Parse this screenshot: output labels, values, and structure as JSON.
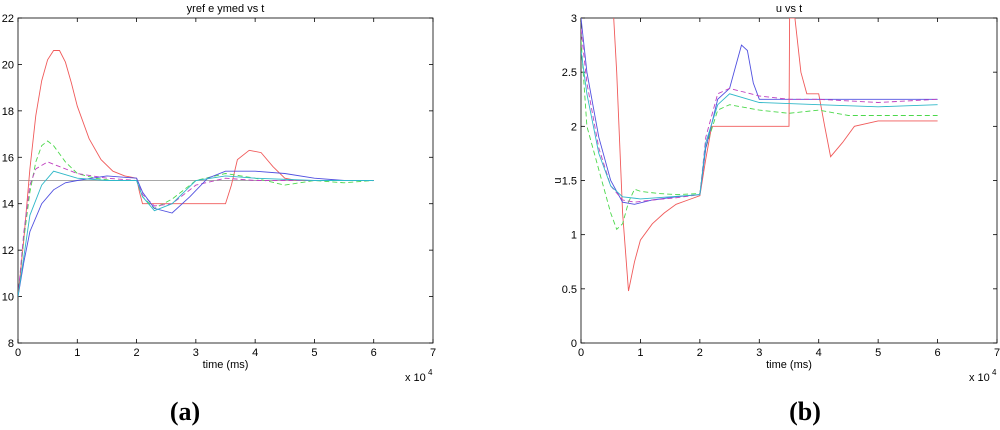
{
  "chart_data": [
    {
      "type": "line",
      "title": "yref  e ymed vs t",
      "x_label": "time (ms)",
      "x_exponent_base": "x 10",
      "x_exponent": "4",
      "caption": "(a)",
      "xlim": [
        0,
        7
      ],
      "xticks": [
        0,
        1,
        2,
        3,
        4,
        5,
        6,
        7
      ],
      "ylim": [
        8,
        22
      ],
      "yticks": [
        8,
        10,
        12,
        14,
        16,
        18,
        20,
        22
      ],
      "series": [
        {
          "color": "#a8a8a8",
          "dashed": false,
          "x": [
            0,
            6
          ],
          "values": [
            15,
            15
          ]
        },
        {
          "color": "#f05a5a",
          "dashed": false,
          "x": [
            0,
            0.1,
            0.2,
            0.3,
            0.4,
            0.5,
            0.6,
            0.7,
            0.8,
            0.9,
            1.0,
            1.2,
            1.4,
            1.6,
            1.8,
            2.0,
            2.05,
            2.1,
            2.3,
            2.6,
            3.0,
            3.5,
            3.6,
            3.7,
            3.9,
            4.1,
            4.3,
            4.5,
            4.7,
            5,
            5.5,
            6
          ],
          "values": [
            10,
            12.5,
            15.5,
            17.8,
            19.3,
            20.2,
            20.6,
            20.6,
            20.1,
            19.2,
            18.2,
            16.8,
            15.9,
            15.4,
            15.2,
            15.1,
            14.5,
            14,
            14,
            14,
            14,
            14,
            14.8,
            15.9,
            16.3,
            16.2,
            15.6,
            15.1,
            15,
            15,
            15,
            15
          ]
        },
        {
          "color": "#4cd84c",
          "dashed": true,
          "x": [
            0,
            0.1,
            0.2,
            0.3,
            0.4,
            0.5,
            0.6,
            0.8,
            1.0,
            1.3,
            1.6,
            2.0,
            2.1,
            2.3,
            2.6,
            3.0,
            3.5,
            4.0,
            4.5,
            5,
            5.5,
            6
          ],
          "values": [
            10,
            12.5,
            14.5,
            15.8,
            16.5,
            16.7,
            16.5,
            15.8,
            15.3,
            15.1,
            15,
            15,
            14.3,
            13.8,
            14.2,
            15,
            15.3,
            15.1,
            14.8,
            15,
            14.9,
            15
          ]
        },
        {
          "color": "#c040c0",
          "dashed": true,
          "x": [
            0,
            0.1,
            0.2,
            0.3,
            0.5,
            0.7,
            1.0,
            1.5,
            2.0,
            2.1,
            2.3,
            2.6,
            3.0,
            3.5,
            4,
            5,
            6
          ],
          "values": [
            10,
            12.8,
            14.8,
            15.5,
            15.8,
            15.6,
            15.3,
            15.1,
            15,
            14.4,
            13.9,
            14,
            14.8,
            15.1,
            15,
            15,
            15
          ]
        },
        {
          "color": "#5050e0",
          "dashed": false,
          "x": [
            0,
            0.1,
            0.2,
            0.4,
            0.6,
            0.8,
            1.0,
            1.5,
            2.0,
            2.1,
            2.3,
            2.6,
            2.9,
            3.2,
            3.5,
            4,
            4.5,
            5,
            5.5,
            6
          ],
          "values": [
            10,
            11.5,
            12.8,
            14,
            14.6,
            14.9,
            15,
            15.2,
            15.1,
            14.5,
            13.8,
            13.6,
            14.3,
            15.1,
            15.4,
            15.4,
            15.3,
            15.1,
            15,
            15
          ]
        },
        {
          "color": "#30b8c8",
          "dashed": false,
          "x": [
            0,
            0.2,
            0.4,
            0.6,
            1,
            1.5,
            2,
            2.1,
            2.3,
            2.6,
            3,
            3.5,
            4,
            5,
            6
          ],
          "values": [
            10,
            13.5,
            14.8,
            15.4,
            15.1,
            15,
            15,
            14.3,
            13.7,
            14,
            15,
            15.2,
            15.1,
            15,
            15
          ]
        }
      ]
    },
    {
      "type": "line",
      "title": "u vs t",
      "x_label": "time (ms)",
      "y_label": "u",
      "x_exponent_base": "x 10",
      "x_exponent": "4",
      "caption": "(b)",
      "xlim": [
        0,
        7
      ],
      "xticks": [
        0,
        1,
        2,
        3,
        4,
        5,
        6,
        7
      ],
      "ylim": [
        0,
        3
      ],
      "yticks": [
        0,
        0.5,
        1,
        1.5,
        2,
        2.5,
        3
      ],
      "series": [
        {
          "color": "#f05a5a",
          "dashed": false,
          "x": [
            0.55,
            0.6,
            0.7,
            0.8,
            0.9,
            1.0,
            1.2,
            1.4,
            1.6,
            1.8,
            2.0,
            2.1,
            2.2,
            2.5,
            3.0,
            3.5,
            3.51,
            3.6,
            3.7,
            3.8,
            4.0,
            4.1,
            4.2,
            4.4,
            4.6,
            5,
            5.5,
            6
          ],
          "values": [
            3.0,
            2.5,
            1.2,
            0.48,
            0.75,
            0.95,
            1.1,
            1.2,
            1.28,
            1.32,
            1.36,
            1.7,
            2.0,
            2.0,
            2.0,
            2.0,
            3.0,
            3.0,
            2.5,
            2.3,
            2.3,
            2.0,
            1.72,
            1.85,
            2.0,
            2.05,
            2.05,
            2.05
          ]
        },
        {
          "color": "#4cd84c",
          "dashed": true,
          "x": [
            0,
            0.1,
            0.3,
            0.5,
            0.6,
            0.7,
            0.8,
            0.9,
            1.0,
            1.3,
            1.6,
            2.0,
            2.1,
            2.3,
            2.5,
            3,
            3.5,
            4,
            4.5,
            5,
            5.5,
            6
          ],
          "values": [
            2.8,
            2.0,
            1.6,
            1.2,
            1.05,
            1.1,
            1.3,
            1.42,
            1.4,
            1.38,
            1.37,
            1.38,
            1.8,
            2.15,
            2.2,
            2.15,
            2.12,
            2.15,
            2.1,
            2.1,
            2.1,
            2.1
          ]
        },
        {
          "color": "#5050e0",
          "dashed": false,
          "x": [
            0,
            0.1,
            0.3,
            0.5,
            0.7,
            0.9,
            1.2,
            1.6,
            2.0,
            2.1,
            2.3,
            2.5,
            2.6,
            2.7,
            2.8,
            2.9,
            3.0,
            3.5,
            4,
            5,
            6
          ],
          "values": [
            3,
            2.5,
            1.9,
            1.5,
            1.3,
            1.28,
            1.32,
            1.35,
            1.37,
            1.8,
            2.25,
            2.35,
            2.55,
            2.75,
            2.7,
            2.4,
            2.25,
            2.25,
            2.25,
            2.25,
            2.25
          ]
        },
        {
          "color": "#c040c0",
          "dashed": true,
          "x": [
            0,
            0.1,
            0.3,
            0.5,
            0.7,
            0.9,
            1.2,
            1.6,
            2.0,
            2.1,
            2.3,
            2.5,
            3,
            3.5,
            4,
            5,
            6
          ],
          "values": [
            2.9,
            2.4,
            1.8,
            1.45,
            1.32,
            1.3,
            1.32,
            1.34,
            1.37,
            1.9,
            2.3,
            2.35,
            2.28,
            2.25,
            2.25,
            2.22,
            2.25
          ]
        },
        {
          "color": "#30b8c8",
          "dashed": false,
          "x": [
            0,
            0.1,
            0.3,
            0.5,
            0.7,
            1.0,
            1.5,
            2.0,
            2.1,
            2.3,
            2.5,
            3,
            4,
            5,
            6
          ],
          "values": [
            2.7,
            2.3,
            1.75,
            1.45,
            1.35,
            1.33,
            1.35,
            1.37,
            1.85,
            2.2,
            2.3,
            2.22,
            2.2,
            2.18,
            2.2
          ]
        }
      ]
    }
  ]
}
